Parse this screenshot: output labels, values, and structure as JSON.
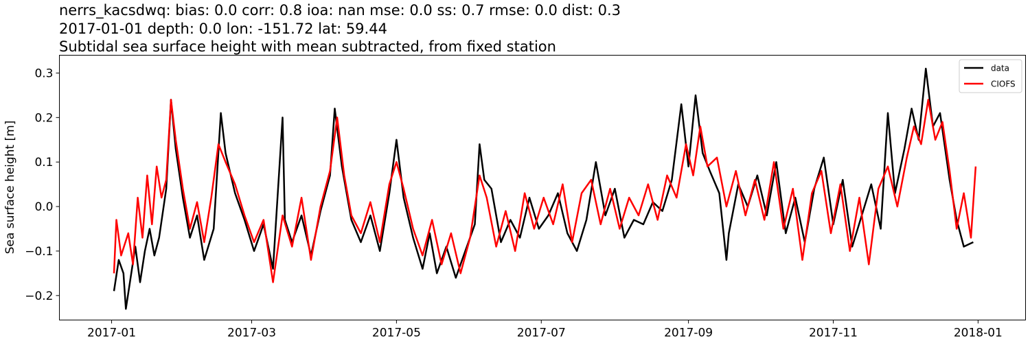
{
  "title_lines": [
    "nerrs_kacsdwq: bias: 0.0  corr: 0.8  ioa: nan  mse: 0.0  ss: 0.7  rmse: 0.0  dist: 0.3",
    "2017-01-01 depth: 0.0 lon: -151.72 lat: 59.44",
    "Subtidal sea surface height with mean subtracted, from fixed station"
  ],
  "chart_data": {
    "type": "line",
    "title": "nerrs_kacsdwq: bias: 0.0  corr: 0.8  ioa: nan  mse: 0.0  ss: 0.7  rmse: 0.0  dist: 0.3 / 2017-01-01 depth: 0.0 lon: -151.72 lat: 59.44 / Subtidal sea surface height with mean subtracted, from fixed station",
    "xlabel": "",
    "ylabel": "Sea surface height [m]",
    "xlim": [
      "2016-12-10",
      "2018-01-21"
    ],
    "ylim": [
      -0.255,
      0.34
    ],
    "x_ticks": [
      "2017-01",
      "2017-03",
      "2017-05",
      "2017-07",
      "2017-09",
      "2017-11",
      "2018-01"
    ],
    "y_ticks": [
      -0.2,
      -0.1,
      0.0,
      0.1,
      0.2,
      0.3
    ],
    "y_tick_labels": [
      "−0.2",
      "−0.1",
      "0.0",
      "0.1",
      "0.2",
      "0.3"
    ],
    "grid": false,
    "legend_position": "top-right",
    "series": [
      {
        "name": "data",
        "color": "#000000",
        "points": [
          [
            "2017-01-02",
            -0.19
          ],
          [
            "2017-01-04",
            -0.12
          ],
          [
            "2017-01-06",
            -0.15
          ],
          [
            "2017-01-07",
            -0.23
          ],
          [
            "2017-01-09",
            -0.16
          ],
          [
            "2017-01-11",
            -0.09
          ],
          [
            "2017-01-13",
            -0.17
          ],
          [
            "2017-01-15",
            -0.1
          ],
          [
            "2017-01-17",
            -0.05
          ],
          [
            "2017-01-19",
            -0.11
          ],
          [
            "2017-01-21",
            -0.07
          ],
          [
            "2017-01-24",
            0.04
          ],
          [
            "2017-01-26",
            0.24
          ],
          [
            "2017-01-28",
            0.13
          ],
          [
            "2017-01-31",
            0.02
          ],
          [
            "2017-02-03",
            -0.07
          ],
          [
            "2017-02-06",
            -0.02
          ],
          [
            "2017-02-09",
            -0.12
          ],
          [
            "2017-02-13",
            -0.05
          ],
          [
            "2017-02-16",
            0.21
          ],
          [
            "2017-02-18",
            0.12
          ],
          [
            "2017-02-22",
            0.03
          ],
          [
            "2017-02-26",
            -0.03
          ],
          [
            "2017-03-02",
            -0.1
          ],
          [
            "2017-03-06",
            -0.04
          ],
          [
            "2017-03-10",
            -0.14
          ],
          [
            "2017-03-14",
            0.2
          ],
          [
            "2017-03-15",
            -0.03
          ],
          [
            "2017-03-18",
            -0.08
          ],
          [
            "2017-03-22",
            -0.02
          ],
          [
            "2017-03-26",
            -0.11
          ],
          [
            "2017-03-30",
            -0.01
          ],
          [
            "2017-04-03",
            0.07
          ],
          [
            "2017-04-05",
            0.22
          ],
          [
            "2017-04-08",
            0.09
          ],
          [
            "2017-04-12",
            -0.03
          ],
          [
            "2017-04-16",
            -0.08
          ],
          [
            "2017-04-20",
            -0.02
          ],
          [
            "2017-04-24",
            -0.1
          ],
          [
            "2017-04-28",
            0.03
          ],
          [
            "2017-05-01",
            0.15
          ],
          [
            "2017-05-04",
            0.02
          ],
          [
            "2017-05-08",
            -0.07
          ],
          [
            "2017-05-12",
            -0.14
          ],
          [
            "2017-05-15",
            -0.06
          ],
          [
            "2017-05-18",
            -0.15
          ],
          [
            "2017-05-22",
            -0.09
          ],
          [
            "2017-05-26",
            -0.16
          ],
          [
            "2017-05-30",
            -0.1
          ],
          [
            "2017-06-03",
            -0.04
          ],
          [
            "2017-06-05",
            0.14
          ],
          [
            "2017-06-07",
            0.06
          ],
          [
            "2017-06-10",
            0.04
          ],
          [
            "2017-06-14",
            -0.08
          ],
          [
            "2017-06-18",
            -0.03
          ],
          [
            "2017-06-22",
            -0.07
          ],
          [
            "2017-06-26",
            0.02
          ],
          [
            "2017-06-30",
            -0.05
          ],
          [
            "2017-07-04",
            -0.02
          ],
          [
            "2017-07-08",
            0.03
          ],
          [
            "2017-07-12",
            -0.06
          ],
          [
            "2017-07-16",
            -0.1
          ],
          [
            "2017-07-20",
            -0.03
          ],
          [
            "2017-07-24",
            0.1
          ],
          [
            "2017-07-28",
            -0.02
          ],
          [
            "2017-08-01",
            0.04
          ],
          [
            "2017-08-05",
            -0.07
          ],
          [
            "2017-08-09",
            -0.03
          ],
          [
            "2017-08-13",
            -0.04
          ],
          [
            "2017-08-17",
            0.01
          ],
          [
            "2017-08-21",
            -0.01
          ],
          [
            "2017-08-25",
            0.06
          ],
          [
            "2017-08-29",
            0.23
          ],
          [
            "2017-09-01",
            0.09
          ],
          [
            "2017-09-04",
            0.25
          ],
          [
            "2017-09-07",
            0.12
          ],
          [
            "2017-09-10",
            0.08
          ],
          [
            "2017-09-14",
            0.03
          ],
          [
            "2017-09-17",
            -0.12
          ],
          [
            "2017-09-18",
            -0.06
          ],
          [
            "2017-09-22",
            0.05
          ],
          [
            "2017-09-26",
            0.0
          ],
          [
            "2017-09-30",
            0.07
          ],
          [
            "2017-10-04",
            -0.02
          ],
          [
            "2017-10-08",
            0.1
          ],
          [
            "2017-10-12",
            -0.06
          ],
          [
            "2017-10-16",
            0.02
          ],
          [
            "2017-10-20",
            -0.08
          ],
          [
            "2017-10-24",
            0.04
          ],
          [
            "2017-10-28",
            0.11
          ],
          [
            "2017-11-01",
            -0.04
          ],
          [
            "2017-11-05",
            0.06
          ],
          [
            "2017-11-09",
            -0.09
          ],
          [
            "2017-11-13",
            -0.02
          ],
          [
            "2017-11-17",
            0.05
          ],
          [
            "2017-11-21",
            -0.05
          ],
          [
            "2017-11-24",
            0.21
          ],
          [
            "2017-11-27",
            0.03
          ],
          [
            "2017-12-01",
            0.13
          ],
          [
            "2017-12-04",
            0.22
          ],
          [
            "2017-12-07",
            0.15
          ],
          [
            "2017-12-10",
            0.31
          ],
          [
            "2017-12-13",
            0.18
          ],
          [
            "2017-12-16",
            0.21
          ],
          [
            "2017-12-20",
            0.06
          ],
          [
            "2017-12-23",
            -0.03
          ],
          [
            "2017-12-26",
            -0.09
          ],
          [
            "2017-12-30",
            -0.08
          ]
        ]
      },
      {
        "name": "CIOFS",
        "color": "#ff0000",
        "points": [
          [
            "2017-01-02",
            -0.15
          ],
          [
            "2017-01-03",
            -0.03
          ],
          [
            "2017-01-05",
            -0.11
          ],
          [
            "2017-01-08",
            -0.06
          ],
          [
            "2017-01-10",
            -0.13
          ],
          [
            "2017-01-12",
            0.02
          ],
          [
            "2017-01-14",
            -0.07
          ],
          [
            "2017-01-16",
            0.07
          ],
          [
            "2017-01-18",
            -0.04
          ],
          [
            "2017-01-20",
            0.09
          ],
          [
            "2017-01-22",
            0.02
          ],
          [
            "2017-01-24",
            0.06
          ],
          [
            "2017-01-26",
            0.24
          ],
          [
            "2017-01-28",
            0.15
          ],
          [
            "2017-01-31",
            0.04
          ],
          [
            "2017-02-03",
            -0.05
          ],
          [
            "2017-02-06",
            0.01
          ],
          [
            "2017-02-09",
            -0.08
          ],
          [
            "2017-02-12",
            0.02
          ],
          [
            "2017-02-15",
            0.14
          ],
          [
            "2017-02-18",
            0.1
          ],
          [
            "2017-02-22",
            0.05
          ],
          [
            "2017-02-26",
            -0.02
          ],
          [
            "2017-03-02",
            -0.08
          ],
          [
            "2017-03-06",
            -0.03
          ],
          [
            "2017-03-10",
            -0.17
          ],
          [
            "2017-03-14",
            -0.02
          ],
          [
            "2017-03-18",
            -0.09
          ],
          [
            "2017-03-22",
            0.02
          ],
          [
            "2017-03-26",
            -0.12
          ],
          [
            "2017-03-30",
            0.0
          ],
          [
            "2017-04-03",
            0.08
          ],
          [
            "2017-04-06",
            0.2
          ],
          [
            "2017-04-09",
            0.07
          ],
          [
            "2017-04-12",
            -0.02
          ],
          [
            "2017-04-16",
            -0.06
          ],
          [
            "2017-04-20",
            0.01
          ],
          [
            "2017-04-24",
            -0.08
          ],
          [
            "2017-04-28",
            0.05
          ],
          [
            "2017-05-01",
            0.1
          ],
          [
            "2017-05-04",
            0.04
          ],
          [
            "2017-05-08",
            -0.05
          ],
          [
            "2017-05-12",
            -0.11
          ],
          [
            "2017-05-16",
            -0.03
          ],
          [
            "2017-05-20",
            -0.13
          ],
          [
            "2017-05-24",
            -0.06
          ],
          [
            "2017-05-28",
            -0.15
          ],
          [
            "2017-06-01",
            -0.07
          ],
          [
            "2017-06-05",
            0.07
          ],
          [
            "2017-06-08",
            0.02
          ],
          [
            "2017-06-12",
            -0.09
          ],
          [
            "2017-06-16",
            -0.01
          ],
          [
            "2017-06-20",
            -0.1
          ],
          [
            "2017-06-24",
            0.03
          ],
          [
            "2017-06-28",
            -0.05
          ],
          [
            "2017-07-02",
            0.02
          ],
          [
            "2017-07-06",
            -0.04
          ],
          [
            "2017-07-10",
            0.05
          ],
          [
            "2017-07-14",
            -0.08
          ],
          [
            "2017-07-18",
            0.03
          ],
          [
            "2017-07-22",
            0.06
          ],
          [
            "2017-07-26",
            -0.04
          ],
          [
            "2017-07-30",
            0.04
          ],
          [
            "2017-08-03",
            -0.05
          ],
          [
            "2017-08-07",
            0.02
          ],
          [
            "2017-08-11",
            -0.02
          ],
          [
            "2017-08-15",
            0.05
          ],
          [
            "2017-08-19",
            -0.03
          ],
          [
            "2017-08-23",
            0.07
          ],
          [
            "2017-08-27",
            0.02
          ],
          [
            "2017-08-31",
            0.14
          ],
          [
            "2017-09-03",
            0.07
          ],
          [
            "2017-09-06",
            0.18
          ],
          [
            "2017-09-09",
            0.09
          ],
          [
            "2017-09-13",
            0.11
          ],
          [
            "2017-09-17",
            0.0
          ],
          [
            "2017-09-21",
            0.08
          ],
          [
            "2017-09-25",
            -0.02
          ],
          [
            "2017-09-29",
            0.06
          ],
          [
            "2017-10-03",
            -0.03
          ],
          [
            "2017-10-07",
            0.1
          ],
          [
            "2017-10-11",
            -0.05
          ],
          [
            "2017-10-15",
            0.04
          ],
          [
            "2017-10-19",
            -0.12
          ],
          [
            "2017-10-23",
            0.03
          ],
          [
            "2017-10-27",
            0.08
          ],
          [
            "2017-10-31",
            -0.06
          ],
          [
            "2017-11-04",
            0.05
          ],
          [
            "2017-11-08",
            -0.1
          ],
          [
            "2017-11-12",
            0.02
          ],
          [
            "2017-11-16",
            -0.13
          ],
          [
            "2017-11-20",
            0.04
          ],
          [
            "2017-11-24",
            0.09
          ],
          [
            "2017-11-28",
            0.0
          ],
          [
            "2017-12-02",
            0.11
          ],
          [
            "2017-12-05",
            0.18
          ],
          [
            "2017-12-08",
            0.14
          ],
          [
            "2017-12-11",
            0.24
          ],
          [
            "2017-12-14",
            0.15
          ],
          [
            "2017-12-17",
            0.19
          ],
          [
            "2017-12-20",
            0.08
          ],
          [
            "2017-12-23",
            -0.05
          ],
          [
            "2017-12-26",
            0.03
          ],
          [
            "2017-12-29",
            -0.07
          ],
          [
            "2017-12-31",
            0.09
          ]
        ]
      }
    ]
  }
}
